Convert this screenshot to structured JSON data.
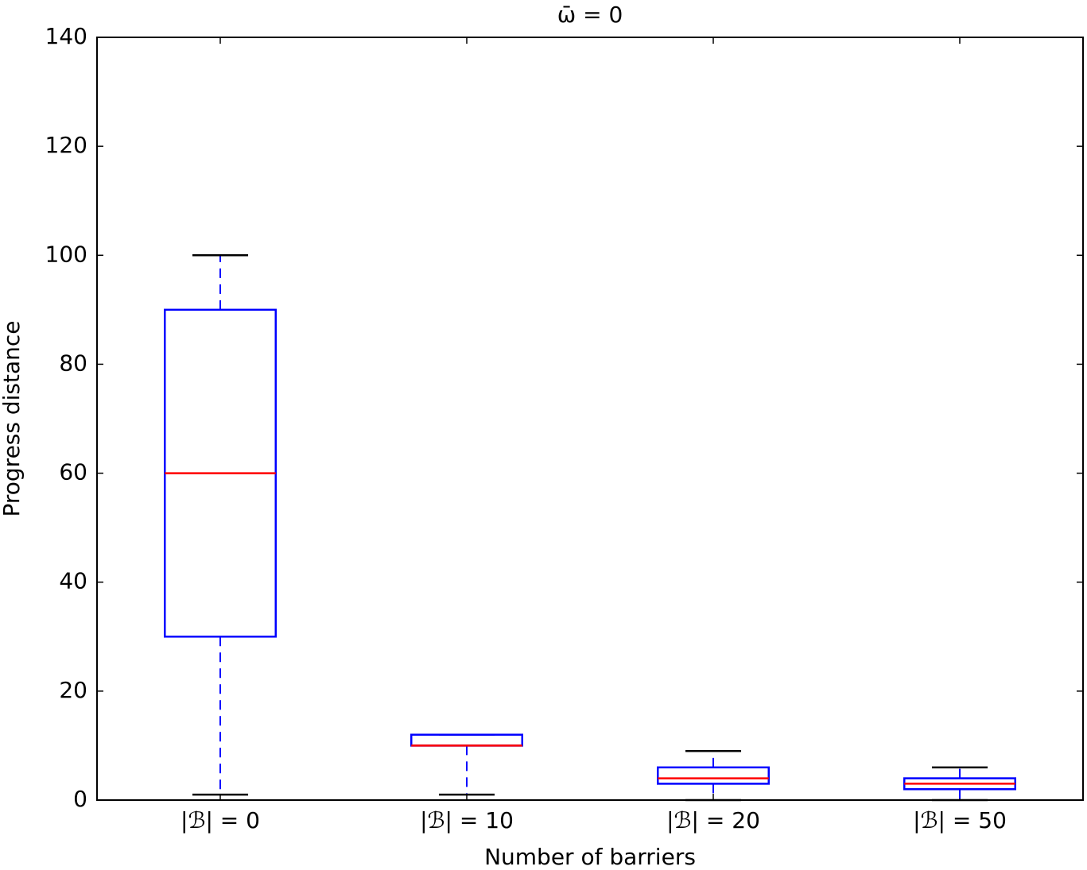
{
  "chart_data": {
    "type": "box",
    "title": "ω̄ = 0",
    "x_label": "Number of barriers",
    "y_label": "Progress distance",
    "categories": [
      "|ℬ| =   0",
      "|ℬ| =   10",
      "|ℬ| =   20",
      "|ℬ| =   50"
    ],
    "series": [
      {
        "whislo": [
          1,
          1,
          0,
          0
        ],
        "q1": [
          30,
          10,
          3,
          2
        ],
        "med": [
          60,
          10,
          4,
          3
        ],
        "q3": [
          90,
          12,
          6,
          4
        ],
        "whishi": [
          100,
          12,
          9,
          6
        ]
      }
    ],
    "box_color": "#0000ff",
    "median_color": "#ff0000",
    "cap_color": "#000000",
    "ylim": [
      0,
      140
    ],
    "yticks": [
      0,
      20,
      40,
      60,
      80,
      100,
      120,
      140
    ]
  }
}
